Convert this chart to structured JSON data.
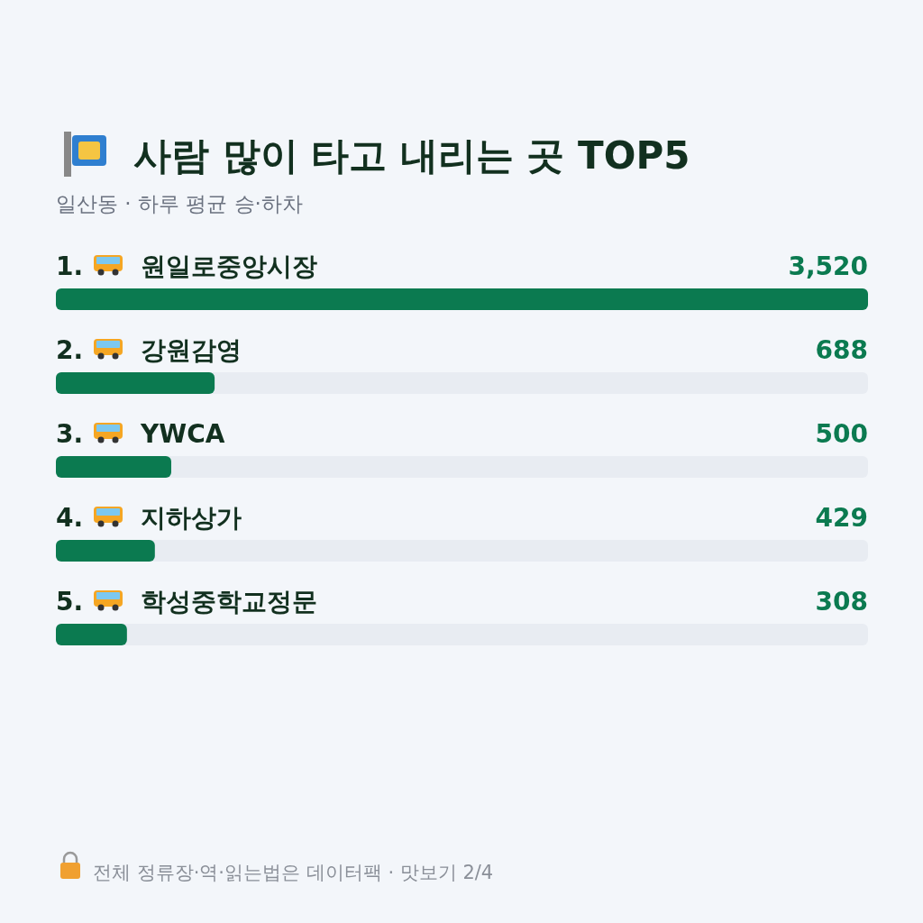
{
  "chart_data": {
    "type": "bar",
    "orientation": "horizontal",
    "title": "사람 많이 타고 내리는 곳 TOP5",
    "subtitle": "일산동 · 하루 평균 승·하차",
    "categories": [
      "1. 원일로중앙시장",
      "2. 강원감영",
      "3. YWCA",
      "4. 지하상가",
      "5. 학성중학교정문"
    ],
    "values": [
      3520,
      688,
      500,
      429,
      308
    ],
    "color": "#0b7a50",
    "value_labels": [
      "3,520",
      "688",
      "500",
      "429",
      "308"
    ],
    "annotations": [
      "전체 정류장·역·읽는법은 데이터팩 · 맛보기 2/4"
    ]
  }
}
